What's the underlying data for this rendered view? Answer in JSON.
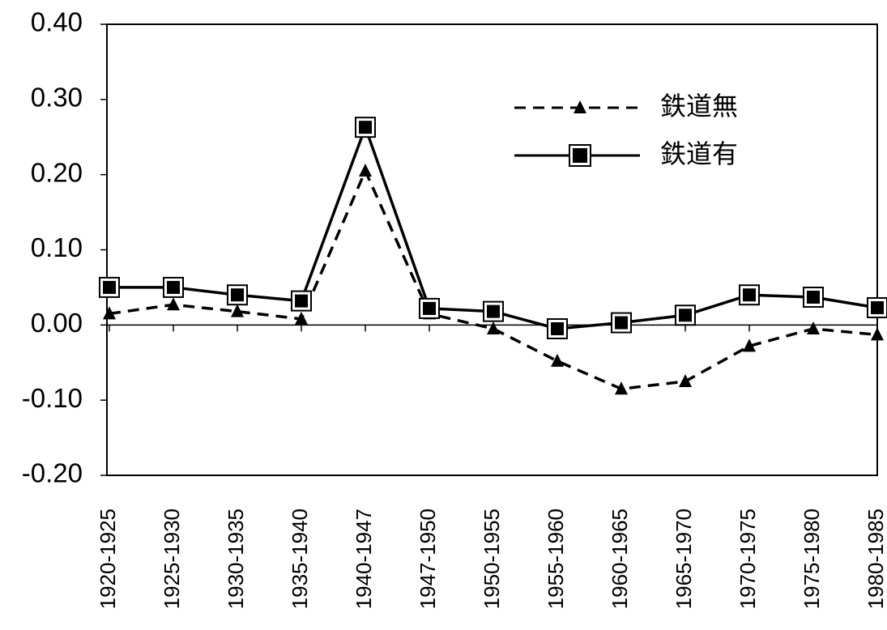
{
  "chart_data": {
    "type": "line",
    "categories": [
      "1920-1925",
      "1925-1930",
      "1930-1935",
      "1935-1940",
      "1940-1947",
      "1947-1950",
      "1950-1955",
      "1955-1960",
      "1960-1965",
      "1965-1970",
      "1970-1975",
      "1975-1980",
      "1980-1985"
    ],
    "ylim": [
      -0.2,
      0.4
    ],
    "yticks": [
      "0.40",
      "0.30",
      "0.20",
      "0.10",
      "0.00",
      "-0.10",
      "-0.20"
    ],
    "legend_position": "top-right",
    "series": [
      {
        "name": "鉄道無",
        "line_style": "dashed",
        "marker": "triangle",
        "color": "#000000",
        "values": [
          0.015,
          0.027,
          0.018,
          0.008,
          0.205,
          0.015,
          -0.005,
          -0.048,
          -0.085,
          -0.075,
          -0.028,
          -0.005,
          -0.013
        ]
      },
      {
        "name": "鉄道有",
        "line_style": "solid",
        "marker": "square",
        "color": "#000000",
        "values": [
          0.05,
          0.05,
          0.04,
          0.032,
          0.263,
          0.022,
          0.018,
          -0.005,
          0.003,
          0.013,
          0.04,
          0.037,
          0.023
        ]
      }
    ]
  }
}
